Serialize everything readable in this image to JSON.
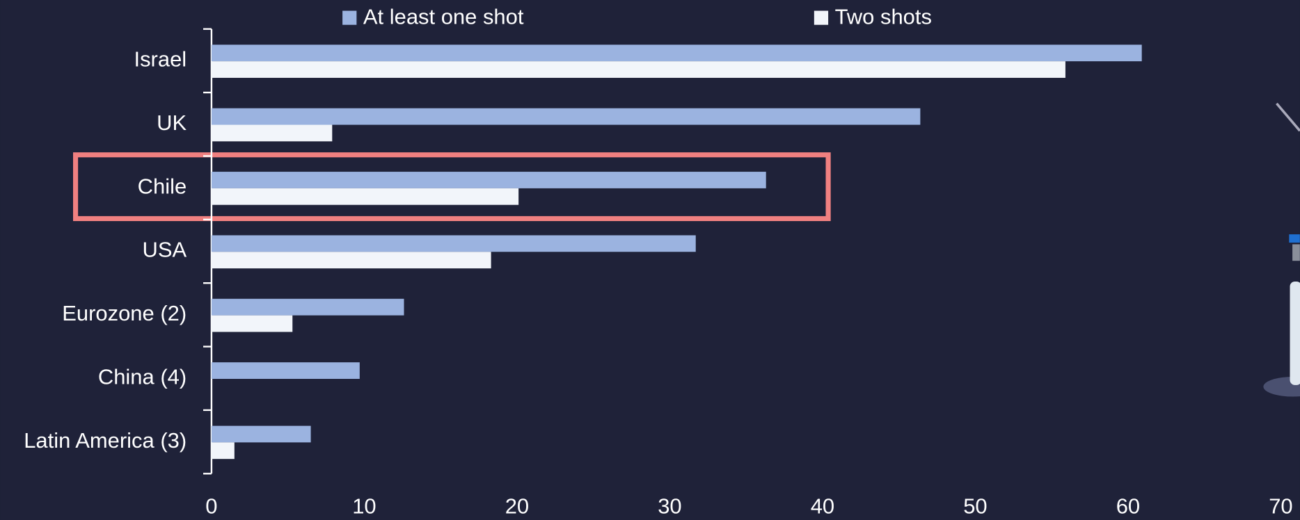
{
  "chart_data": {
    "type": "barh",
    "categories": [
      "Israel",
      "UK",
      "Chile",
      "USA",
      "Eurozone (2)",
      "China (4)",
      "Latin America (3)"
    ],
    "series": [
      {
        "name": "At least one shot",
        "color": "#9bb3e0",
        "values": [
          60.9,
          46.4,
          36.3,
          31.7,
          12.6,
          9.7,
          6.5
        ]
      },
      {
        "name": "Two shots",
        "color": "#f2f5fa",
        "values": [
          55.9,
          7.9,
          20.1,
          18.3,
          5.3,
          null,
          1.5
        ]
      }
    ],
    "xlim": [
      0,
      70
    ],
    "xticks": [
      0,
      10,
      20,
      30,
      40,
      50,
      60,
      70
    ]
  }
}
